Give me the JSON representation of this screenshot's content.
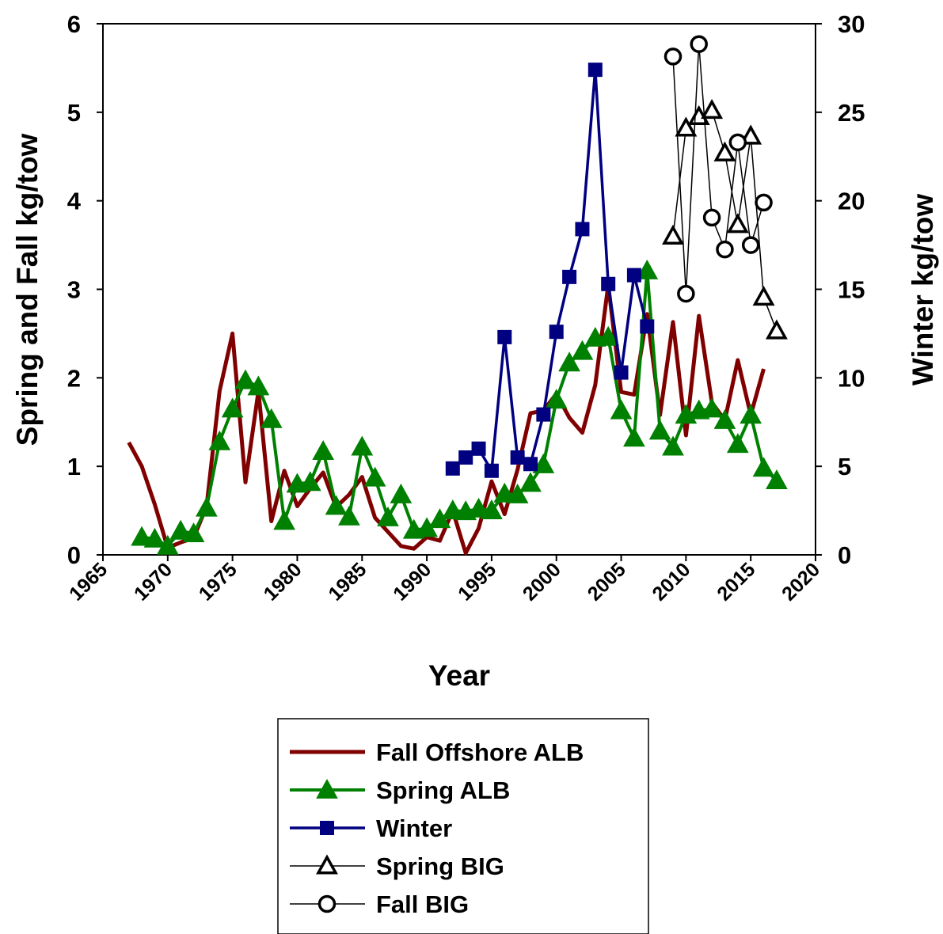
{
  "chart_data": {
    "type": "line",
    "title": "",
    "xlabel": "Year",
    "ylabel_left": "Spring and Fall kg/tow",
    "ylabel_right": "Winter kg/tow",
    "xlim": [
      1965,
      2020
    ],
    "ylim_left": [
      0,
      6
    ],
    "ylim_right": [
      0,
      30
    ],
    "x_ticks": [
      "1965",
      "1970",
      "1975",
      "1980",
      "1985",
      "1990",
      "1995",
      "2000",
      "2005",
      "2010",
      "2015",
      "2020"
    ],
    "y_left_ticks": [
      "0",
      "1",
      "2",
      "3",
      "4",
      "5",
      "6"
    ],
    "y_right_ticks": [
      "0",
      "5",
      "10",
      "15",
      "20",
      "25",
      "30"
    ],
    "grid": false,
    "legend_position": "bottom-center",
    "series": [
      {
        "name": "Fall Offshore ALB",
        "axis": "left",
        "color": "#800000",
        "marker": "none",
        "points": [
          [
            1967,
            1.27
          ],
          [
            1968,
            1.0
          ],
          [
            1969,
            0.57
          ],
          [
            1970,
            0.08
          ],
          [
            1971,
            0.14
          ],
          [
            1972,
            0.19
          ],
          [
            1973,
            0.55
          ],
          [
            1974,
            1.85
          ],
          [
            1975,
            2.5
          ],
          [
            1976,
            0.82
          ],
          [
            1977,
            1.85
          ],
          [
            1978,
            0.38
          ],
          [
            1979,
            0.95
          ],
          [
            1980,
            0.55
          ],
          [
            1981,
            0.75
          ],
          [
            1982,
            0.93
          ],
          [
            1983,
            0.54
          ],
          [
            1984,
            0.68
          ],
          [
            1985,
            0.88
          ],
          [
            1986,
            0.42
          ],
          [
            1987,
            0.26
          ],
          [
            1988,
            0.1
          ],
          [
            1989,
            0.07
          ],
          [
            1990,
            0.2
          ],
          [
            1991,
            0.16
          ],
          [
            1992,
            0.5
          ],
          [
            1993,
            0.02
          ],
          [
            1994,
            0.3
          ],
          [
            1995,
            0.83
          ],
          [
            1996,
            0.46
          ],
          [
            1997,
            0.96
          ],
          [
            1998,
            1.6
          ],
          [
            1999,
            1.63
          ],
          [
            2000,
            1.82
          ],
          [
            2001,
            1.55
          ],
          [
            2002,
            1.38
          ],
          [
            2003,
            1.92
          ],
          [
            2004,
            3.05
          ],
          [
            2005,
            1.84
          ],
          [
            2006,
            1.81
          ],
          [
            2007,
            2.72
          ],
          [
            2008,
            1.58
          ],
          [
            2009,
            2.63
          ],
          [
            2010,
            1.35
          ],
          [
            2011,
            2.7
          ],
          [
            2012,
            1.72
          ],
          [
            2013,
            1.52
          ],
          [
            2014,
            2.2
          ],
          [
            2015,
            1.58
          ],
          [
            2016,
            2.1
          ]
        ]
      },
      {
        "name": "Spring ALB",
        "axis": "left",
        "color": "#008000",
        "marker": "triangle-filled",
        "points": [
          [
            1968,
            0.2
          ],
          [
            1969,
            0.18
          ],
          [
            1970,
            0.1
          ],
          [
            1971,
            0.27
          ],
          [
            1972,
            0.24
          ],
          [
            1973,
            0.53
          ],
          [
            1974,
            1.28
          ],
          [
            1975,
            1.65
          ],
          [
            1976,
            1.97
          ],
          [
            1977,
            1.9
          ],
          [
            1978,
            1.53
          ],
          [
            1979,
            0.38
          ],
          [
            1980,
            0.8
          ],
          [
            1981,
            0.82
          ],
          [
            1982,
            1.17
          ],
          [
            1983,
            0.55
          ],
          [
            1984,
            0.43
          ],
          [
            1985,
            1.22
          ],
          [
            1986,
            0.87
          ],
          [
            1987,
            0.42
          ],
          [
            1988,
            0.68
          ],
          [
            1989,
            0.28
          ],
          [
            1990,
            0.3
          ],
          [
            1991,
            0.4
          ],
          [
            1992,
            0.5
          ],
          [
            1993,
            0.49
          ],
          [
            1994,
            0.52
          ],
          [
            1995,
            0.5
          ],
          [
            1996,
            0.69
          ],
          [
            1997,
            0.68
          ],
          [
            1998,
            0.81
          ],
          [
            1999,
            1.02
          ],
          [
            2000,
            1.75
          ],
          [
            2001,
            2.17
          ],
          [
            2002,
            2.3
          ],
          [
            2003,
            2.45
          ],
          [
            2004,
            2.46
          ],
          [
            2005,
            1.63
          ],
          [
            2006,
            1.32
          ],
          [
            2007,
            3.21
          ],
          [
            2008,
            1.4
          ],
          [
            2009,
            1.22
          ],
          [
            2010,
            1.58
          ],
          [
            2011,
            1.63
          ],
          [
            2012,
            1.65
          ],
          [
            2013,
            1.52
          ],
          [
            2014,
            1.25
          ],
          [
            2015,
            1.58
          ],
          [
            2016,
            0.98
          ],
          [
            2017,
            0.84
          ]
        ]
      },
      {
        "name": "Winter",
        "axis": "right",
        "color": "#000080",
        "marker": "square-filled",
        "points": [
          [
            1992,
            4.88
          ],
          [
            1993,
            5.5
          ],
          [
            1994,
            6.0
          ],
          [
            1995,
            4.75
          ],
          [
            1996,
            12.3
          ],
          [
            1997,
            5.5
          ],
          [
            1998,
            5.13
          ],
          [
            1999,
            7.93
          ],
          [
            2000,
            12.6
          ],
          [
            2001,
            15.7
          ],
          [
            2002,
            18.4
          ],
          [
            2003,
            27.4
          ],
          [
            2004,
            15.3
          ],
          [
            2005,
            10.3
          ],
          [
            2006,
            15.8
          ],
          [
            2007,
            12.9
          ]
        ]
      },
      {
        "name": "Spring BIG",
        "axis": "left",
        "color": "#000000",
        "marker": "triangle-open",
        "points": [
          [
            2009,
            3.6
          ],
          [
            2010,
            4.82
          ],
          [
            2011,
            4.95
          ],
          [
            2012,
            5.02
          ],
          [
            2013,
            4.54
          ],
          [
            2014,
            3.73
          ],
          [
            2015,
            4.73
          ],
          [
            2016,
            2.91
          ],
          [
            2017,
            2.53
          ]
        ]
      },
      {
        "name": "Fall BIG",
        "axis": "left",
        "color": "#000000",
        "marker": "circle-open",
        "points": [
          [
            2009,
            5.63
          ],
          [
            2010,
            2.95
          ],
          [
            2011,
            5.77
          ],
          [
            2012,
            3.81
          ],
          [
            2013,
            3.45
          ],
          [
            2014,
            4.66
          ],
          [
            2015,
            3.5
          ],
          [
            2016,
            3.98
          ]
        ]
      }
    ]
  }
}
